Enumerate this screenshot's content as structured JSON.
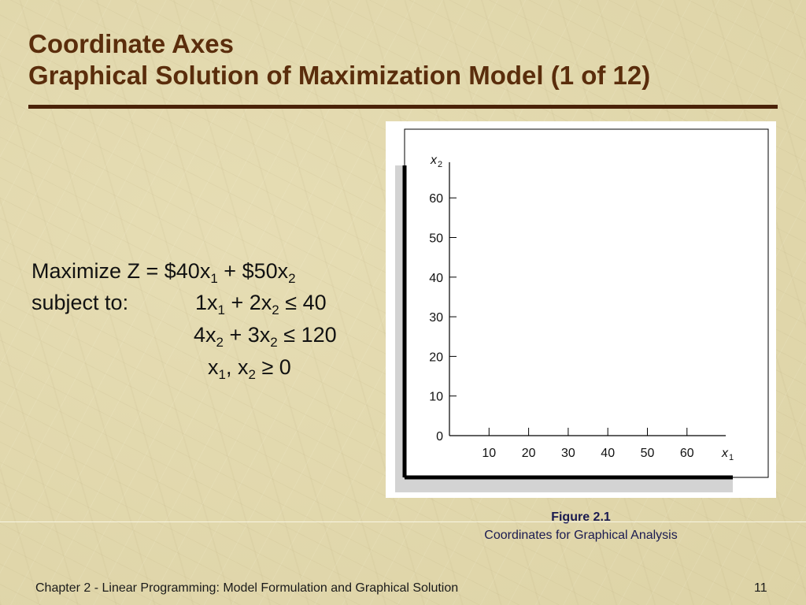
{
  "slide": {
    "title_line1": "Coordinate Axes",
    "title_line2": "Graphical Solution of Maximization Model (1 of 12)",
    "footer": "Chapter 2 - Linear Programming:  Model Formulation and Graphical Solution",
    "page_number": "11",
    "colors": {
      "title": "#5a2d0c",
      "rule": "#4a2208",
      "background": "#e2d9ae"
    }
  },
  "model": {
    "objective": {
      "prefix": "Maximize Z = $40x",
      "sub1": "1",
      "mid": " + $50x",
      "sub2": "2"
    },
    "subject_to_label": "subject to:",
    "constraint1": {
      "a": "1x",
      "sub_a": "1",
      "b": " + 2x",
      "sub_b": "2",
      "rhs": " ≤ 40"
    },
    "constraint2": {
      "a": "4x",
      "sub_a": "2",
      "b": " + 3x",
      "sub_b": "2",
      "rhs": " ≤ 120"
    },
    "nonnegativity": {
      "a": "x",
      "sub_a": "1",
      "b": ", x",
      "sub_b": "2",
      "rhs": " ≥ 0"
    }
  },
  "figure": {
    "number": "Figure 2.1",
    "caption": "Coordinates for Graphical Analysis"
  },
  "chart_data": {
    "type": "scatter",
    "x": [],
    "y": [],
    "xlabel": "x1",
    "ylabel": "x2",
    "xlim": [
      0,
      70
    ],
    "ylim": [
      0,
      70
    ],
    "xticks": [
      10,
      20,
      30,
      40,
      50,
      60
    ],
    "yticks": [
      0,
      10,
      20,
      30,
      40,
      50,
      60
    ],
    "xlabel_main": "x",
    "xlabel_sub": "1",
    "ylabel_main": "x",
    "ylabel_sub": "2",
    "grid": false
  }
}
